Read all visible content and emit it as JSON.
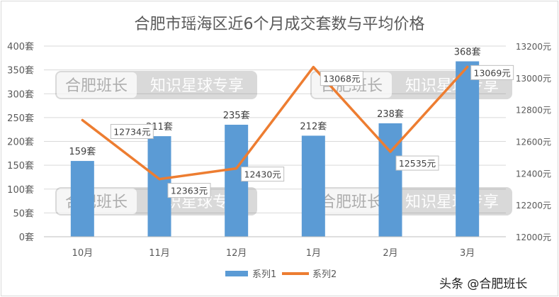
{
  "chart_data": {
    "type": "bar",
    "title": "合肥市瑶海区近6个月成交套数与平均价格",
    "categories": [
      "10月",
      "11月",
      "12月",
      "1月",
      "2月",
      "3月"
    ],
    "series": [
      {
        "name": "系列1",
        "kind": "bar",
        "axis": "left",
        "color": "#5b9bd5",
        "values": [
          159,
          211,
          235,
          212,
          238,
          368
        ],
        "labels": [
          "159套",
          "211套",
          "235套",
          "212套",
          "238套",
          "368套"
        ]
      },
      {
        "name": "系列2",
        "kind": "line",
        "axis": "right",
        "color": "#ed7d31",
        "values": [
          12734,
          12363,
          12430,
          13068,
          12535,
          13069
        ],
        "labels": [
          "12734元",
          "12363元",
          "12430元",
          "13068元",
          "12535元",
          "13069元"
        ]
      }
    ],
    "y_left": {
      "lim": [
        0,
        400
      ],
      "ticks": [
        "0套",
        "50套",
        "100套",
        "150套",
        "200套",
        "250套",
        "300套",
        "350套",
        "400套"
      ]
    },
    "y_right": {
      "lim": [
        12000,
        13200
      ],
      "ticks": [
        "12000元",
        "12200元",
        "12400元",
        "12600元",
        "12800元",
        "13000元",
        "13200元"
      ]
    },
    "grid": true,
    "legend": "bottom"
  },
  "watermark": "合肥班长 知识星球专享",
  "source_mark": "头条 @合肥班长"
}
